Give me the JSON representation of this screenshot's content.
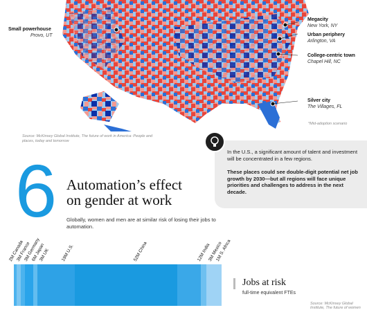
{
  "map": {
    "labels": [
      {
        "title": "Small powerhouse",
        "place": "Provo, UT"
      },
      {
        "title": "Megacity",
        "place": "New York, NY"
      },
      {
        "title": "Urban periphery",
        "place": "Arlington, VA"
      },
      {
        "title": "College-centric town",
        "place": "Chapel Hill, NC"
      },
      {
        "title": "Silver city",
        "place": "The Villages, FL"
      }
    ],
    "note": "*Mid-adoption scenario",
    "source": "Source: McKinsey Global Institute, The future of work in America: People and places, today and tomorrow",
    "colors": {
      "red": "#e8463c",
      "pink": "#f29a92",
      "lightblue": "#9ec9ee",
      "blue": "#2b6fd6",
      "navy": "#0a2fa8"
    }
  },
  "callout": {
    "p1": "In the U.S., a significant amount of talent and investment will be concentrated in a few regions.",
    "p2": "These places could see double-digit potential net job growth by 2030—but all regions will face unique priorities and challenges to address in the next decade."
  },
  "section": {
    "number": "6",
    "title_line1": "Automation’s effect",
    "title_line2": "on gender at work",
    "subtitle": "Globally, women and men are at similar risk of losing their jobs to automation."
  },
  "jobs_at_risk": {
    "title": "Jobs at risk",
    "subtitle": "full-time equivalent FTEs",
    "source": "Source: McKinsey Global Institute, The future of women",
    "countries": [
      {
        "label": "2M Canada"
      },
      {
        "label": "3M France"
      },
      {
        "label": "3M Germany"
      },
      {
        "label": "6M Japan"
      },
      {
        "label": "3M UK"
      },
      {
        "label": "19M U.S."
      },
      {
        "label": "52M China"
      },
      {
        "label": "12M India"
      },
      {
        "label": "3M Mexico"
      },
      {
        "label": "1M S. Africa"
      }
    ],
    "accent": "#1a9ae0"
  }
}
